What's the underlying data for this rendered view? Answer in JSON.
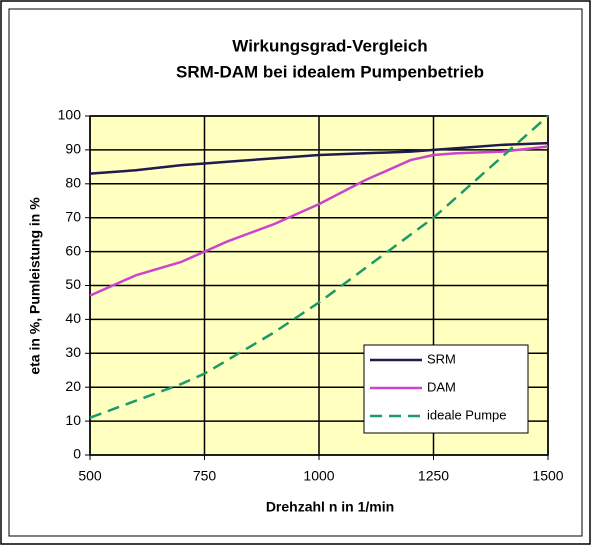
{
  "chart_data": {
    "type": "line",
    "title": "Wirkungsgrad-Vergleich",
    "subtitle": "SRM-DAM bei idealem Pumpenbetrieb",
    "x_label": "Drehzahl n in 1/min",
    "y_label": "eta in %, Pumleistung in %",
    "x": [
      500,
      600,
      700,
      750,
      800,
      900,
      1000,
      1100,
      1200,
      1250,
      1300,
      1400,
      1500
    ],
    "series": [
      {
        "name": "SRM",
        "color": "#1f1a4f",
        "dash": false,
        "values": [
          83,
          84,
          85.5,
          86,
          86.5,
          87.5,
          88.5,
          89,
          89.5,
          90,
          90.5,
          91.5,
          92
        ]
      },
      {
        "name": "DAM",
        "color": "#cc44cc",
        "dash": false,
        "values": [
          47,
          53,
          57,
          60,
          63,
          68,
          74,
          81,
          87,
          88.5,
          89,
          89.5,
          91
        ]
      },
      {
        "name": "ideale Pumpe",
        "color": "#1a9a6a",
        "dash": true,
        "values": [
          11,
          16,
          21,
          24,
          28,
          36,
          45,
          55,
          65,
          70,
          76,
          88,
          100
        ]
      }
    ],
    "xlim": [
      500,
      1500
    ],
    "xticks": [
      500,
      750,
      1000,
      1250,
      1500
    ],
    "ylim": [
      0,
      100
    ],
    "yticks": [
      0,
      10,
      20,
      30,
      40,
      50,
      60,
      70,
      80,
      90,
      100
    ],
    "grid": true,
    "background": "#ffffc0",
    "legend": "lower right"
  }
}
